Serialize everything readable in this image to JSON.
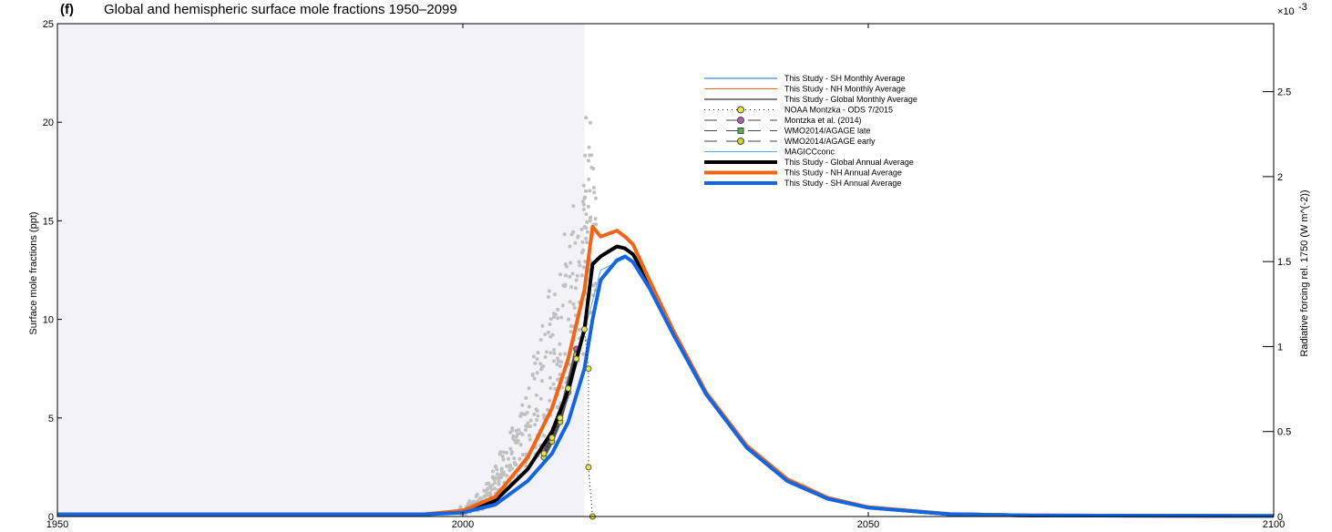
{
  "chart_data": {
    "type": "line",
    "panel_letter": "(f)",
    "title": "Global and hemispheric surface mole fractions 1950–2099",
    "ylabel": "Surface mole fractions (ppt)",
    "ylabel_right": "Radiative forcing rel. 1750 (W m^(-2))",
    "right_axis_multiplier": "×10",
    "right_axis_exponent": "-3",
    "xlim": [
      1950,
      2100
    ],
    "ylim": [
      0,
      25
    ],
    "ylim_right": [
      0,
      0.0029
    ],
    "x_ticks": [
      1950,
      2000,
      2050,
      2100
    ],
    "y_ticks": [
      0,
      5,
      10,
      15,
      20,
      25
    ],
    "y_right_ticks": [
      "0",
      "0.5",
      "1",
      "1.5",
      "2",
      "2.5"
    ],
    "y_right_values": [
      0,
      0.0005,
      0.001,
      0.0015,
      0.002,
      0.0025
    ],
    "historical_shading": [
      1950,
      2015
    ],
    "grid": false,
    "legend_position": "top-right",
    "colors": {
      "sh_annual": "#1466e0",
      "nh_annual": "#f06414",
      "global_annual": "#000000",
      "sh_monthly": "#1466e0",
      "nh_monthly": "#f06414",
      "global_monthly": "#000000",
      "noaa": "#e6e640",
      "montzka": "#b45ab4",
      "wmo_late": "#50b450",
      "wmo_early": "#c8dc28",
      "magicc": "#5aaae6",
      "scatter": "#c0c0c0",
      "shading": "#f2f2f8"
    },
    "series": [
      {
        "name": "This Study - SH Monthly Average",
        "style": "thin",
        "color_key": "sh_monthly",
        "x": [
          1950,
          1995,
          2000,
          2004,
          2008,
          2011,
          2013,
          2015,
          2016,
          2017,
          2019,
          2020,
          2021,
          2023,
          2026,
          2030,
          2035,
          2040,
          2045,
          2050,
          2060,
          2070,
          2100
        ],
        "values": [
          0.1,
          0.1,
          0.2,
          0.6,
          1.8,
          3.2,
          4.8,
          7.5,
          10.0,
          12.0,
          13.0,
          13.2,
          12.9,
          11.6,
          9.2,
          6.2,
          3.5,
          1.8,
          0.9,
          0.45,
          0.12,
          0.05,
          0.03
        ]
      },
      {
        "name": "This Study - NH Monthly Average",
        "style": "thin",
        "color_key": "nh_monthly",
        "x": [
          1950,
          1995,
          2000,
          2004,
          2008,
          2011,
          2013,
          2015,
          2016,
          2017,
          2019,
          2020,
          2021,
          2023,
          2026,
          2030,
          2035,
          2040,
          2045,
          2050,
          2060,
          2070,
          2100
        ],
        "values": [
          0.1,
          0.1,
          0.3,
          1.0,
          3.0,
          5.5,
          8.0,
          11.5,
          14.7,
          14.2,
          14.5,
          14.2,
          13.8,
          12.0,
          9.4,
          6.3,
          3.6,
          1.9,
          0.95,
          0.47,
          0.13,
          0.05,
          0.03
        ]
      },
      {
        "name": "This Study - Global Monthly Average",
        "style": "thin",
        "color_key": "global_monthly",
        "x": [
          1950,
          1995,
          2000,
          2004,
          2008,
          2011,
          2013,
          2015,
          2016,
          2017,
          2019,
          2020,
          2021,
          2023,
          2026,
          2030,
          2035,
          2040,
          2045,
          2050,
          2060,
          2070,
          2100
        ],
        "values": [
          0.1,
          0.1,
          0.25,
          0.8,
          2.4,
          4.3,
          6.4,
          9.5,
          12.8,
          13.2,
          13.7,
          13.6,
          13.3,
          11.8,
          9.3,
          6.25,
          3.55,
          1.85,
          0.92,
          0.46,
          0.12,
          0.05,
          0.03
        ]
      },
      {
        "name": "NOAA Montzka - ODS 7/2015",
        "style": "dotted-marker",
        "color_key": "noaa",
        "x": [
          2010,
          2011,
          2012,
          2013,
          2014,
          2015,
          2015.5,
          2015.5,
          2016
        ],
        "values": [
          3.2,
          4.0,
          5.0,
          6.5,
          8.0,
          9.5,
          7.5,
          2.5,
          0.0
        ]
      },
      {
        "name": "Montzka et al. (2014)",
        "style": "dash-marker",
        "color_key": "montzka",
        "x": [
          2010,
          2012,
          2014
        ],
        "values": [
          3.3,
          5.2,
          8.5
        ]
      },
      {
        "name": "WMO2014/AGAGE late",
        "style": "dash-square",
        "color_key": "wmo_late",
        "x": [
          2010,
          2011,
          2012,
          2013,
          2014
        ],
        "values": [
          3.1,
          3.9,
          4.9,
          6.4,
          8.3
        ]
      },
      {
        "name": "WMO2014/AGAGE early",
        "style": "dash-marker",
        "color_key": "wmo_early",
        "x": [
          2010,
          2011,
          2012,
          2013,
          2014
        ],
        "values": [
          3.0,
          3.8,
          4.8,
          6.3,
          8.2
        ]
      },
      {
        "name": "MAGICCconc",
        "style": "thin",
        "color_key": "magicc",
        "x": [
          2010,
          2013,
          2015,
          2017,
          2020
        ],
        "values": [
          2.9,
          6.0,
          9.4,
          12.5,
          13.1
        ]
      },
      {
        "name": "This Study - Global Annual Average",
        "style": "thick",
        "color_key": "global_annual",
        "x": [
          1950,
          1995,
          2000,
          2004,
          2008,
          2011,
          2013,
          2015,
          2016,
          2017,
          2019,
          2020,
          2021,
          2023,
          2026,
          2030,
          2035,
          2040,
          2045,
          2050,
          2060,
          2070,
          2100
        ],
        "values": [
          0.1,
          0.1,
          0.25,
          0.8,
          2.4,
          4.3,
          6.4,
          9.5,
          12.8,
          13.2,
          13.7,
          13.6,
          13.3,
          11.8,
          9.3,
          6.25,
          3.55,
          1.85,
          0.92,
          0.46,
          0.12,
          0.05,
          0.03
        ]
      },
      {
        "name": "This Study - NH Annual Average",
        "style": "thick",
        "color_key": "nh_annual",
        "x": [
          1950,
          1995,
          2000,
          2004,
          2008,
          2011,
          2013,
          2015,
          2016,
          2017,
          2019,
          2020,
          2021,
          2023,
          2026,
          2030,
          2035,
          2040,
          2045,
          2050,
          2060,
          2070,
          2100
        ],
        "values": [
          0.1,
          0.1,
          0.3,
          1.0,
          3.0,
          5.5,
          8.0,
          11.5,
          14.7,
          14.2,
          14.5,
          14.2,
          13.8,
          12.0,
          9.4,
          6.3,
          3.6,
          1.9,
          0.95,
          0.47,
          0.13,
          0.05,
          0.03
        ]
      },
      {
        "name": "This Study - SH Annual Average",
        "style": "thick",
        "color_key": "sh_annual",
        "x": [
          1950,
          1995,
          2000,
          2004,
          2008,
          2011,
          2013,
          2015,
          2016,
          2017,
          2019,
          2020,
          2021,
          2023,
          2026,
          2030,
          2035,
          2040,
          2045,
          2050,
          2060,
          2070,
          2100
        ],
        "values": [
          0.1,
          0.1,
          0.2,
          0.6,
          1.8,
          3.2,
          4.8,
          7.5,
          10.0,
          12.0,
          13.0,
          13.2,
          12.9,
          11.6,
          9.2,
          6.2,
          3.5,
          1.8,
          0.9,
          0.45,
          0.12,
          0.05,
          0.03
        ]
      }
    ],
    "scatter_cloud": {
      "name": "station observations",
      "x": [
        2000,
        2001,
        2002,
        2003,
        2004,
        2005,
        2006,
        2007,
        2008,
        2009,
        2010,
        2011,
        2012,
        2013,
        2014,
        2015,
        2015.5,
        2016
      ],
      "y_min": [
        0.1,
        0.2,
        0.3,
        0.5,
        0.8,
        1.2,
        1.6,
        2.0,
        2.5,
        3.0,
        3.5,
        4.2,
        5.0,
        6.0,
        7.0,
        8.0,
        10.0,
        11.0
      ],
      "y_max": [
        0.5,
        0.8,
        1.2,
        1.8,
        2.6,
        3.5,
        4.6,
        5.8,
        7.0,
        8.5,
        10.0,
        11.5,
        13.0,
        14.5,
        16.0,
        17.5,
        20.5,
        19.0
      ]
    }
  }
}
